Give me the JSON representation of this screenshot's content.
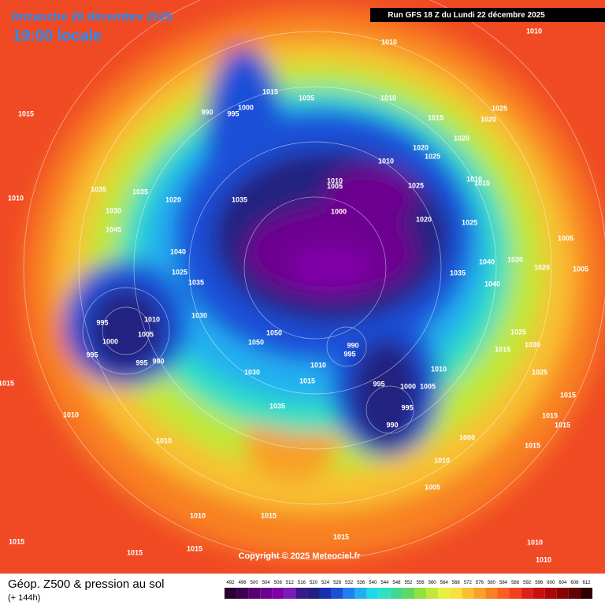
{
  "header": {
    "date": "Dimanche 28 décembre 2025",
    "time": "19:00 locale",
    "run": "Run GFS 18 Z du Lundi 22 décembre 2025"
  },
  "footer": {
    "title": "Géop. Z500 & pression au sol",
    "lead": "(+ 144h)",
    "copyright": "Copyright © 2025 Meteociel.fr"
  },
  "colorbar": {
    "values": [
      492,
      496,
      500,
      504,
      508,
      512,
      516,
      520,
      524,
      528,
      532,
      536,
      540,
      544,
      548,
      552,
      556,
      560,
      564,
      568,
      572,
      576,
      580,
      584,
      588,
      592,
      596,
      600,
      604,
      608,
      612
    ],
    "colors": [
      "#2a0030",
      "#3d0050",
      "#55006e",
      "#6e0090",
      "#8000a8",
      "#7a1ab8",
      "#3a1a8a",
      "#202080",
      "#1830b0",
      "#1a50d8",
      "#2080f0",
      "#20b0f0",
      "#20d8e8",
      "#30e0c0",
      "#40d890",
      "#60d860",
      "#90e040",
      "#c0e838",
      "#e8f040",
      "#f8e040",
      "#f8c030",
      "#f8a028",
      "#f88020",
      "#f86020",
      "#f04020",
      "#e02018",
      "#c81010",
      "#a80808",
      "#880404",
      "#600202",
      "#300000"
    ]
  },
  "pressure_labels": [
    1010,
    1010,
    1015,
    990,
    995,
    1000,
    1015,
    1035,
    1010,
    1015,
    1025,
    1020,
    1020,
    1020,
    1025,
    1010,
    1010,
    1005,
    1000,
    1025,
    1010,
    1015,
    1020,
    1025,
    1010,
    1035,
    1035,
    1020,
    1035,
    1030,
    1045,
    1040,
    1025,
    1035,
    1005,
    1030,
    1020,
    1005,
    1040,
    1035,
    1040,
    995,
    1010,
    1030,
    1005,
    1000,
    995,
    995,
    990,
    1050,
    1050,
    990,
    995,
    1010,
    1015,
    1030,
    1010,
    995,
    1000,
    1005,
    1025,
    1030,
    1015,
    1025,
    1015,
    1015,
    1015,
    1015,
    1010,
    1035,
    995,
    990,
    1000,
    1010,
    1015,
    1010,
    1005,
    1010,
    1015,
    1015,
    1015,
    1015,
    1015,
    1010,
    1010
  ]
}
